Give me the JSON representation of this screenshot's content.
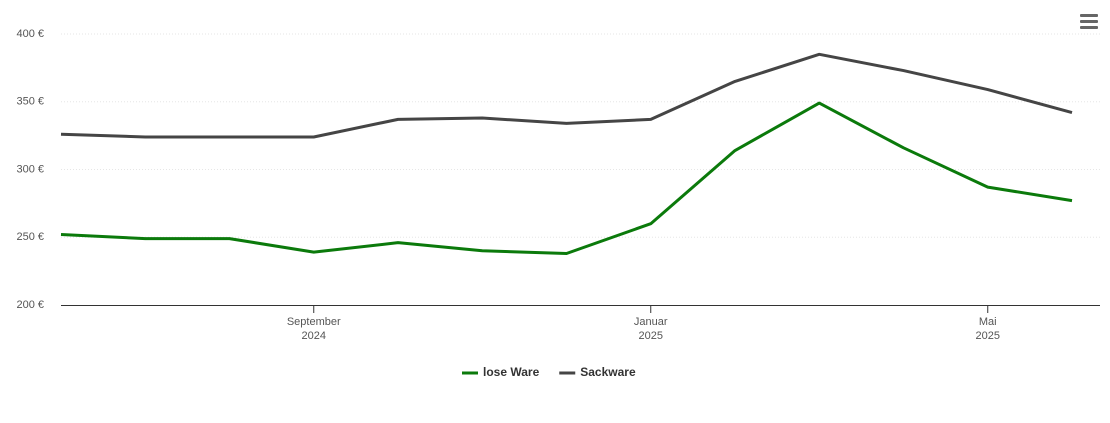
{
  "chart_data": {
    "type": "line",
    "x": [
      "2024-06",
      "2024-07",
      "2024-08",
      "2024-09",
      "2024-10",
      "2024-11",
      "2024-12",
      "2025-01",
      "2025-02",
      "2025-03",
      "2025-04",
      "2025-05",
      "2025-06"
    ],
    "series": [
      {
        "name": "lose Ware",
        "color": "#0b7a0b",
        "values": [
          252,
          249,
          249,
          239,
          246,
          240,
          238,
          260,
          314,
          349,
          316,
          287,
          277
        ]
      },
      {
        "name": "Sackware",
        "color": "#454545",
        "values": [
          326,
          324,
          324,
          324,
          337,
          338,
          334,
          337,
          365,
          385,
          373,
          359,
          342
        ]
      }
    ],
    "xlim": [
      "2024-06",
      "2025-06"
    ],
    "xticks": [
      {
        "value": "2024-09",
        "label": [
          "September",
          "2024"
        ]
      },
      {
        "value": "2025-01",
        "label": [
          "Januar",
          "2025"
        ]
      },
      {
        "value": "2025-05",
        "label": [
          "Mai",
          "2025"
        ]
      }
    ],
    "ylim": [
      200,
      400
    ],
    "yticks": [
      {
        "value": 200,
        "label": "200 €"
      },
      {
        "value": 250,
        "label": "250 €"
      },
      {
        "value": 300,
        "label": "300 €"
      },
      {
        "value": 350,
        "label": "350 €"
      },
      {
        "value": 400,
        "label": "400 €"
      }
    ],
    "grid": true,
    "legend": "bottom"
  }
}
